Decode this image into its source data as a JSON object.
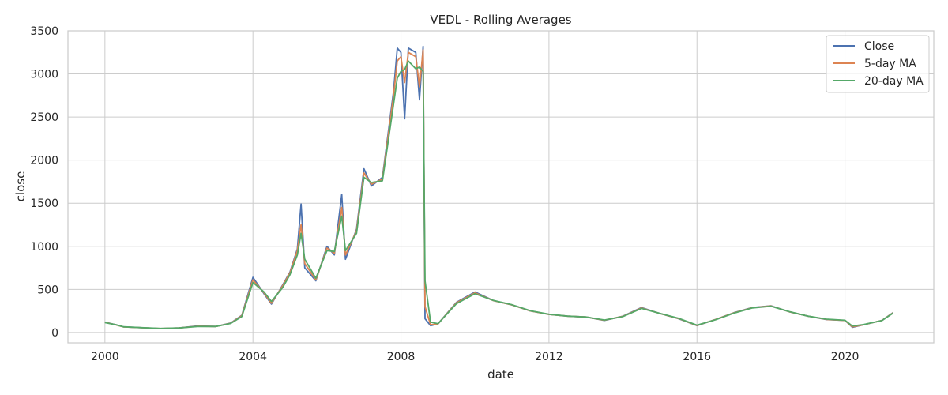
{
  "chart_data": {
    "type": "line",
    "title": "VEDL - Rolling Averages",
    "xlabel": "date",
    "ylabel": "close",
    "xlim": [
      1999,
      2022.4
    ],
    "ylim": [
      -120,
      3500
    ],
    "x_ticks": [
      {
        "value": 2000,
        "label": "2000"
      },
      {
        "value": 2004,
        "label": "2004"
      },
      {
        "value": 2008,
        "label": "2008"
      },
      {
        "value": 2012,
        "label": "2012"
      },
      {
        "value": 2016,
        "label": "2016"
      },
      {
        "value": 2020,
        "label": "2020"
      }
    ],
    "y_ticks": [
      {
        "value": 0,
        "label": "0"
      },
      {
        "value": 500,
        "label": "500"
      },
      {
        "value": 1000,
        "label": "1000"
      },
      {
        "value": 1500,
        "label": "1500"
      },
      {
        "value": 2000,
        "label": "2000"
      },
      {
        "value": 2500,
        "label": "2500"
      },
      {
        "value": 3000,
        "label": "3000"
      },
      {
        "value": 3500,
        "label": "3500"
      }
    ],
    "grid": true,
    "legend_position": "top-right",
    "series": [
      {
        "name": "Close",
        "color": "#4c72b0",
        "points": [
          [
            2000.0,
            120
          ],
          [
            2000.3,
            90
          ],
          [
            2000.5,
            65
          ],
          [
            2001.0,
            55
          ],
          [
            2001.5,
            45
          ],
          [
            2002.0,
            52
          ],
          [
            2002.5,
            75
          ],
          [
            2003.0,
            70
          ],
          [
            2003.4,
            110
          ],
          [
            2003.7,
            200
          ],
          [
            2004.0,
            640
          ],
          [
            2004.3,
            450
          ],
          [
            2004.5,
            330
          ],
          [
            2004.8,
            550
          ],
          [
            2005.0,
            700
          ],
          [
            2005.2,
            970
          ],
          [
            2005.3,
            1490
          ],
          [
            2005.4,
            750
          ],
          [
            2005.7,
            600
          ],
          [
            2006.0,
            1000
          ],
          [
            2006.2,
            900
          ],
          [
            2006.4,
            1600
          ],
          [
            2006.5,
            850
          ],
          [
            2006.8,
            1200
          ],
          [
            2007.0,
            1900
          ],
          [
            2007.2,
            1700
          ],
          [
            2007.5,
            1800
          ],
          [
            2007.8,
            2800
          ],
          [
            2007.9,
            3300
          ],
          [
            2008.0,
            3250
          ],
          [
            2008.1,
            2480
          ],
          [
            2008.2,
            3300
          ],
          [
            2008.4,
            3250
          ],
          [
            2008.5,
            2700
          ],
          [
            2008.6,
            3320
          ],
          [
            2008.65,
            160
          ],
          [
            2008.8,
            80
          ],
          [
            2009.0,
            100
          ],
          [
            2009.5,
            350
          ],
          [
            2010.0,
            470
          ],
          [
            2010.5,
            370
          ],
          [
            2011.0,
            320
          ],
          [
            2011.5,
            250
          ],
          [
            2012.0,
            210
          ],
          [
            2012.5,
            190
          ],
          [
            2013.0,
            180
          ],
          [
            2013.5,
            140
          ],
          [
            2014.0,
            190
          ],
          [
            2014.5,
            290
          ],
          [
            2015.0,
            220
          ],
          [
            2015.5,
            160
          ],
          [
            2016.0,
            80
          ],
          [
            2016.5,
            150
          ],
          [
            2017.0,
            230
          ],
          [
            2017.5,
            290
          ],
          [
            2018.0,
            310
          ],
          [
            2018.5,
            240
          ],
          [
            2019.0,
            190
          ],
          [
            2019.5,
            150
          ],
          [
            2020.0,
            140
          ],
          [
            2020.2,
            60
          ],
          [
            2020.5,
            90
          ],
          [
            2021.0,
            140
          ],
          [
            2021.3,
            230
          ]
        ]
      },
      {
        "name": "5-day MA",
        "color": "#dd8452",
        "points": [
          [
            2000.0,
            118
          ],
          [
            2000.3,
            88
          ],
          [
            2000.5,
            64
          ],
          [
            2001.0,
            55
          ],
          [
            2001.5,
            46
          ],
          [
            2002.0,
            52
          ],
          [
            2002.5,
            72
          ],
          [
            2003.0,
            70
          ],
          [
            2003.4,
            108
          ],
          [
            2003.7,
            195
          ],
          [
            2004.0,
            610
          ],
          [
            2004.3,
            460
          ],
          [
            2004.5,
            340
          ],
          [
            2004.8,
            540
          ],
          [
            2005.0,
            690
          ],
          [
            2005.2,
            950
          ],
          [
            2005.3,
            1250
          ],
          [
            2005.4,
            800
          ],
          [
            2005.7,
            610
          ],
          [
            2006.0,
            980
          ],
          [
            2006.2,
            920
          ],
          [
            2006.4,
            1450
          ],
          [
            2006.5,
            900
          ],
          [
            2006.8,
            1180
          ],
          [
            2007.0,
            1850
          ],
          [
            2007.2,
            1720
          ],
          [
            2007.5,
            1780
          ],
          [
            2007.8,
            2750
          ],
          [
            2007.9,
            3150
          ],
          [
            2008.0,
            3200
          ],
          [
            2008.1,
            2900
          ],
          [
            2008.2,
            3250
          ],
          [
            2008.4,
            3200
          ],
          [
            2008.5,
            2850
          ],
          [
            2008.6,
            3280
          ],
          [
            2008.65,
            300
          ],
          [
            2008.8,
            90
          ],
          [
            2009.0,
            100
          ],
          [
            2009.5,
            345
          ],
          [
            2010.0,
            460
          ],
          [
            2010.5,
            370
          ],
          [
            2011.0,
            320
          ],
          [
            2011.5,
            250
          ],
          [
            2012.0,
            210
          ],
          [
            2012.5,
            190
          ],
          [
            2013.0,
            180
          ],
          [
            2013.5,
            142
          ],
          [
            2014.0,
            188
          ],
          [
            2014.5,
            285
          ],
          [
            2015.0,
            220
          ],
          [
            2015.5,
            162
          ],
          [
            2016.0,
            82
          ],
          [
            2016.5,
            150
          ],
          [
            2017.0,
            228
          ],
          [
            2017.5,
            288
          ],
          [
            2018.0,
            308
          ],
          [
            2018.5,
            240
          ],
          [
            2019.0,
            190
          ],
          [
            2019.5,
            152
          ],
          [
            2020.0,
            140
          ],
          [
            2020.2,
            65
          ],
          [
            2020.5,
            90
          ],
          [
            2021.0,
            140
          ],
          [
            2021.3,
            228
          ]
        ]
      },
      {
        "name": "20-day MA",
        "color": "#55a868",
        "points": [
          [
            2000.0,
            115
          ],
          [
            2000.3,
            90
          ],
          [
            2000.5,
            66
          ],
          [
            2001.0,
            56
          ],
          [
            2001.5,
            47
          ],
          [
            2002.0,
            52
          ],
          [
            2002.5,
            70
          ],
          [
            2003.0,
            70
          ],
          [
            2003.4,
            105
          ],
          [
            2003.7,
            185
          ],
          [
            2004.0,
            580
          ],
          [
            2004.3,
            470
          ],
          [
            2004.5,
            360
          ],
          [
            2004.8,
            520
          ],
          [
            2005.0,
            670
          ],
          [
            2005.2,
            900
          ],
          [
            2005.3,
            1150
          ],
          [
            2005.4,
            850
          ],
          [
            2005.7,
            630
          ],
          [
            2006.0,
            950
          ],
          [
            2006.2,
            940
          ],
          [
            2006.4,
            1350
          ],
          [
            2006.5,
            950
          ],
          [
            2006.8,
            1150
          ],
          [
            2007.0,
            1800
          ],
          [
            2007.2,
            1740
          ],
          [
            2007.5,
            1760
          ],
          [
            2007.8,
            2650
          ],
          [
            2007.9,
            2950
          ],
          [
            2008.0,
            3030
          ],
          [
            2008.1,
            3050
          ],
          [
            2008.2,
            3150
          ],
          [
            2008.4,
            3060
          ],
          [
            2008.5,
            3080
          ],
          [
            2008.6,
            3030
          ],
          [
            2008.65,
            600
          ],
          [
            2008.8,
            120
          ],
          [
            2009.0,
            102
          ],
          [
            2009.5,
            335
          ],
          [
            2010.0,
            450
          ],
          [
            2010.5,
            372
          ],
          [
            2011.0,
            322
          ],
          [
            2011.5,
            252
          ],
          [
            2012.0,
            212
          ],
          [
            2012.5,
            190
          ],
          [
            2013.0,
            180
          ],
          [
            2013.5,
            145
          ],
          [
            2014.0,
            185
          ],
          [
            2014.5,
            280
          ],
          [
            2015.0,
            222
          ],
          [
            2015.5,
            165
          ],
          [
            2016.0,
            85
          ],
          [
            2016.5,
            148
          ],
          [
            2017.0,
            225
          ],
          [
            2017.5,
            285
          ],
          [
            2018.0,
            305
          ],
          [
            2018.5,
            242
          ],
          [
            2019.0,
            190
          ],
          [
            2019.5,
            155
          ],
          [
            2020.0,
            142
          ],
          [
            2020.2,
            75
          ],
          [
            2020.5,
            92
          ],
          [
            2021.0,
            138
          ],
          [
            2021.3,
            225
          ]
        ]
      }
    ]
  }
}
